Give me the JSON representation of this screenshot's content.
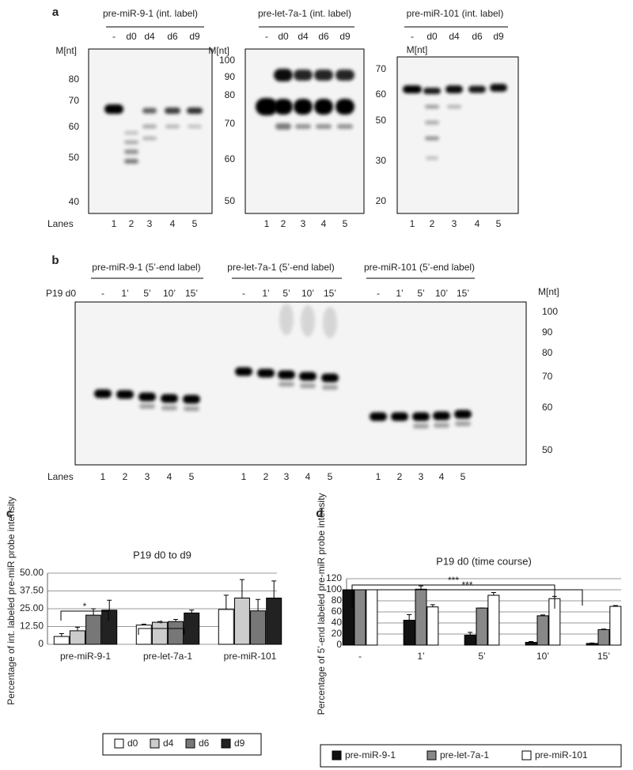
{
  "panel_a": {
    "label": "a",
    "marker_unit": "M[nt]",
    "lanes_label": "Lanes",
    "gels": [
      {
        "title": "pre-miR-9-1 (int. label)",
        "lanes": [
          "-",
          "d0",
          "d4",
          "d6",
          "d9"
        ],
        "markers": [
          "80",
          "70",
          "60",
          "50",
          "40"
        ],
        "lane_numbers": [
          "1",
          "2",
          "3",
          "4",
          "5"
        ]
      },
      {
        "title": "pre-let-7a-1 (int. label)",
        "lanes": [
          "-",
          "d0",
          "d4",
          "d6",
          "d9"
        ],
        "markers": [
          "100",
          "90",
          "80",
          "70",
          "60",
          "50"
        ],
        "lane_numbers": [
          "1",
          "2",
          "3",
          "4",
          "5"
        ]
      },
      {
        "title": "pre-miR-101 (int. label)",
        "lanes": [
          "-",
          "d0",
          "d4",
          "d6",
          "d9"
        ],
        "markers": [
          "70",
          "60",
          "50",
          "30",
          "20"
        ],
        "lane_numbers": [
          "1",
          "2",
          "3",
          "4",
          "5"
        ]
      }
    ]
  },
  "panel_b": {
    "label": "b",
    "condition": "P19 d0",
    "marker_unit": "M[nt]",
    "lanes_label": "Lanes",
    "markers": [
      "100",
      "90",
      "80",
      "70",
      "60",
      "50"
    ],
    "gels": [
      {
        "title": "pre-miR-9-1 (5’-end label)",
        "lanes": [
          "-",
          "1’",
          "5’",
          "10’",
          "15’"
        ],
        "lane_numbers": [
          "1",
          "2",
          "3",
          "4",
          "5"
        ]
      },
      {
        "title": "pre-let-7a-1 (5’-end label)",
        "lanes": [
          "-",
          "1’",
          "5’",
          "10’",
          "15’"
        ],
        "lane_numbers": [
          "1",
          "2",
          "3",
          "4",
          "5"
        ]
      },
      {
        "title": "pre-miR-101 (5’-end label)",
        "lanes": [
          "-",
          "1’",
          "5’",
          "10’",
          "15’"
        ],
        "lane_numbers": [
          "1",
          "2",
          "3",
          "4",
          "5"
        ]
      }
    ]
  },
  "chart_data": [
    {
      "type": "bar",
      "panel_label": "c",
      "title": "P19 d0 to d9",
      "y_label": "Percentage of int. labeled pre-miR probe intensity",
      "categories": [
        "pre-miR-9-1",
        "pre-let-7a-1",
        "pre-miR-101"
      ],
      "series": [
        {
          "name": "d0",
          "color": "#ffffff",
          "values": [
            5.5,
            13.5,
            24.5
          ],
          "errors": [
            2,
            0.7,
            10
          ]
        },
        {
          "name": "d4",
          "color": "#cccccc",
          "values": [
            9.5,
            15.5,
            32.5
          ],
          "errors": [
            2.5,
            0.5,
            13
          ]
        },
        {
          "name": "d6",
          "color": "#777777",
          "values": [
            20.5,
            16,
            23.5
          ],
          "errors": [
            4.5,
            1.5,
            8
          ]
        },
        {
          "name": "d9",
          "color": "#222222",
          "values": [
            24,
            22,
            32.5
          ],
          "errors": [
            7,
            2,
            12
          ]
        }
      ],
      "ylim": [
        0,
        50
      ],
      "yticks": [
        0,
        {
          "value": 12.5,
          "label": "12.50"
        },
        {
          "value": 25,
          "label": "25.00"
        },
        {
          "value": 37.5,
          "label": "37.50"
        },
        {
          "value": 50,
          "label": "50.00"
        }
      ],
      "grid": true,
      "significance": [
        "*",
        "*"
      ]
    },
    {
      "type": "bar",
      "panel_label": "d",
      "title": "P19 d0 (time course)",
      "y_label": "Percentage of 5’-end labeled pre-miR probe intensity",
      "categories": [
        "-",
        "1’",
        "5’",
        "10’",
        "15’"
      ],
      "series": [
        {
          "name": "pre-miR-9-1",
          "color": "#111111",
          "values": [
            100,
            45,
            18,
            5,
            3
          ],
          "errors": [
            0,
            10,
            5,
            1.5,
            0.7
          ]
        },
        {
          "name": "pre-let-7a-1",
          "color": "#888888",
          "values": [
            100,
            101,
            67,
            53,
            28
          ],
          "errors": [
            0,
            6,
            0,
            1.5,
            1
          ]
        },
        {
          "name": "pre-miR-101",
          "color": "#ffffff",
          "values": [
            100,
            69,
            90,
            84,
            70
          ],
          "errors": [
            0,
            4,
            5,
            4,
            1.5
          ]
        }
      ],
      "ylim": [
        0,
        120
      ],
      "yticks": [
        0,
        20,
        40,
        60,
        80,
        100,
        120
      ],
      "grid": true,
      "significance": [
        "***",
        "***"
      ]
    }
  ]
}
